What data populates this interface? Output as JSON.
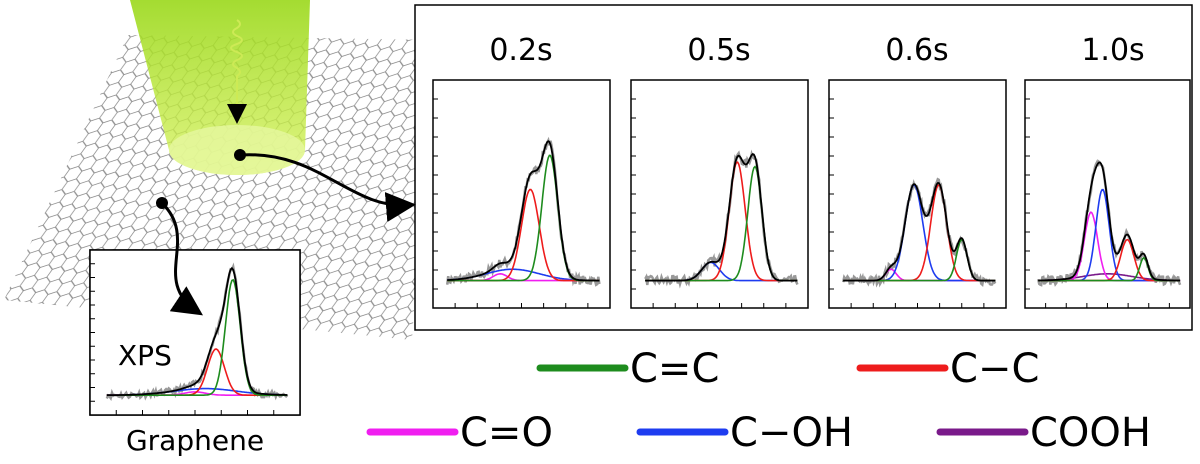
{
  "panels": [
    {
      "time": "0.2s"
    },
    {
      "time": "0.5s"
    },
    {
      "time": "0.6s"
    },
    {
      "time": "1.0s"
    }
  ],
  "inset": {
    "label": "XPS",
    "caption": "Graphene"
  },
  "legend": [
    {
      "name": "C=C",
      "color": "#1e8c1e"
    },
    {
      "name": "C−C",
      "color": "#ee1c1c"
    },
    {
      "name": "C=O",
      "color": "#f01ef0"
    },
    {
      "name": "C−OH",
      "color": "#1e3cf0"
    },
    {
      "name": "COOH",
      "color": "#7a1a8a"
    }
  ]
}
